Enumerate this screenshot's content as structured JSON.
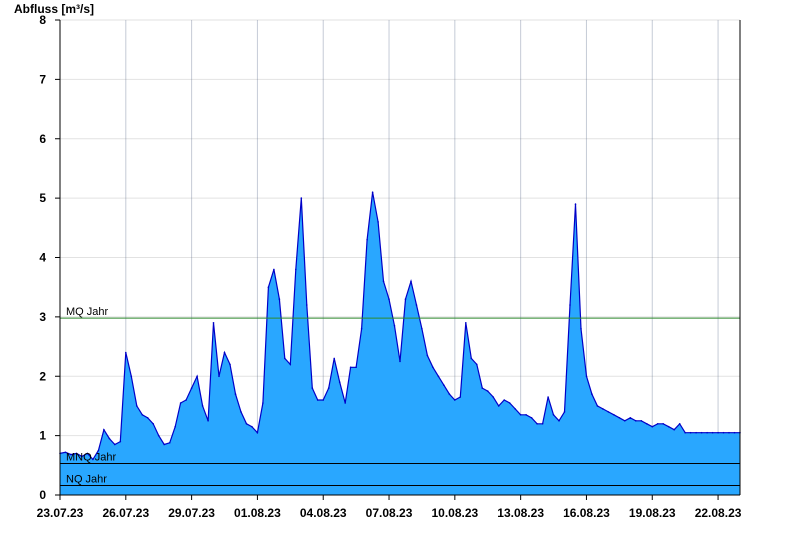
{
  "chart_data": {
    "type": "area",
    "title": "",
    "ylabel": "Abfluss [m³/s]",
    "xlabel": "",
    "ylim": [
      0,
      8
    ],
    "yticks": [
      0,
      1,
      2,
      3,
      4,
      5,
      6,
      7,
      8
    ],
    "xlim": [
      "2023-07-23T00:00",
      "2023-08-23T00:00"
    ],
    "xtick_labels": [
      "23.07.23",
      "26.07.23",
      "29.07.23",
      "01.08.23",
      "04.08.23",
      "07.08.23",
      "10.08.23",
      "13.08.23",
      "16.08.23",
      "19.08.23",
      "22.08.23"
    ],
    "xtick_dates": [
      "2023-07-23",
      "2023-07-26",
      "2023-07-29",
      "2023-08-01",
      "2023-08-04",
      "2023-08-07",
      "2023-08-10",
      "2023-08-13",
      "2023-08-16",
      "2023-08-19",
      "2023-08-22"
    ],
    "grid": true,
    "colors": {
      "fill": "#29a7ff",
      "line": "#0000c8",
      "mq_line": "#2e8b2e",
      "ref_line": "#000000",
      "grid": "#e2e2e2"
    },
    "reference_lines": [
      {
        "label": "MQ Jahr",
        "value": 2.98
      },
      {
        "label": "MNQ Jahr",
        "value": 0.53
      },
      {
        "label": "NQ Jahr",
        "value": 0.16
      }
    ],
    "series": [
      {
        "x": [
          "2023-07-23T00:00",
          "2023-07-23T06:00",
          "2023-07-23T12:00",
          "2023-07-23T18:00",
          "2023-07-24T00:00",
          "2023-07-24T06:00",
          "2023-07-24T12:00",
          "2023-07-24T18:00",
          "2023-07-25T00:00",
          "2023-07-25T06:00",
          "2023-07-25T12:00",
          "2023-07-25T18:00",
          "2023-07-26T00:00",
          "2023-07-26T06:00",
          "2023-07-26T12:00",
          "2023-07-26T18:00",
          "2023-07-27T00:00",
          "2023-07-27T06:00",
          "2023-07-27T12:00",
          "2023-07-27T18:00",
          "2023-07-28T00:00",
          "2023-07-28T06:00",
          "2023-07-28T12:00",
          "2023-07-28T18:00",
          "2023-07-29T00:00",
          "2023-07-29T06:00",
          "2023-07-29T12:00",
          "2023-07-29T18:00",
          "2023-07-30T00:00",
          "2023-07-30T06:00",
          "2023-07-30T12:00",
          "2023-07-30T18:00",
          "2023-07-31T00:00",
          "2023-07-31T06:00",
          "2023-07-31T12:00",
          "2023-07-31T18:00",
          "2023-08-01T00:00",
          "2023-08-01T06:00",
          "2023-08-01T12:00",
          "2023-08-01T18:00",
          "2023-08-02T00:00",
          "2023-08-02T06:00",
          "2023-08-02T12:00",
          "2023-08-02T18:00",
          "2023-08-03T00:00",
          "2023-08-03T06:00",
          "2023-08-03T12:00",
          "2023-08-03T18:00",
          "2023-08-04T00:00",
          "2023-08-04T06:00",
          "2023-08-04T12:00",
          "2023-08-04T18:00",
          "2023-08-05T00:00",
          "2023-08-05T06:00",
          "2023-08-05T12:00",
          "2023-08-05T18:00",
          "2023-08-06T00:00",
          "2023-08-06T06:00",
          "2023-08-06T12:00",
          "2023-08-06T18:00",
          "2023-08-07T00:00",
          "2023-08-07T06:00",
          "2023-08-07T12:00",
          "2023-08-07T18:00",
          "2023-08-08T00:00",
          "2023-08-08T06:00",
          "2023-08-08T12:00",
          "2023-08-08T18:00",
          "2023-08-09T00:00",
          "2023-08-09T06:00",
          "2023-08-09T12:00",
          "2023-08-09T18:00",
          "2023-08-10T00:00",
          "2023-08-10T06:00",
          "2023-08-10T12:00",
          "2023-08-10T18:00",
          "2023-08-11T00:00",
          "2023-08-11T06:00",
          "2023-08-11T12:00",
          "2023-08-11T18:00",
          "2023-08-12T00:00",
          "2023-08-12T06:00",
          "2023-08-12T12:00",
          "2023-08-12T18:00",
          "2023-08-13T00:00",
          "2023-08-13T06:00",
          "2023-08-13T12:00",
          "2023-08-13T18:00",
          "2023-08-14T00:00",
          "2023-08-14T06:00",
          "2023-08-14T12:00",
          "2023-08-14T18:00",
          "2023-08-15T00:00",
          "2023-08-15T06:00",
          "2023-08-15T12:00",
          "2023-08-15T18:00",
          "2023-08-16T00:00",
          "2023-08-16T06:00",
          "2023-08-16T12:00",
          "2023-08-16T18:00",
          "2023-08-17T00:00",
          "2023-08-17T06:00",
          "2023-08-17T12:00",
          "2023-08-17T18:00",
          "2023-08-18T00:00",
          "2023-08-18T06:00",
          "2023-08-18T12:00",
          "2023-08-18T18:00",
          "2023-08-19T00:00",
          "2023-08-19T06:00",
          "2023-08-19T12:00",
          "2023-08-19T18:00",
          "2023-08-20T00:00",
          "2023-08-20T06:00",
          "2023-08-20T12:00",
          "2023-08-20T18:00",
          "2023-08-21T00:00",
          "2023-08-21T06:00",
          "2023-08-21T12:00",
          "2023-08-21T18:00",
          "2023-08-22T00:00",
          "2023-08-22T06:00",
          "2023-08-22T12:00",
          "2023-08-22T18:00",
          "2023-08-23T00:00"
        ],
        "values": [
          0.7,
          0.72,
          0.68,
          0.7,
          0.65,
          0.7,
          0.6,
          0.75,
          1.1,
          0.95,
          0.85,
          0.9,
          2.4,
          2.0,
          1.5,
          1.35,
          1.3,
          1.2,
          1.0,
          0.85,
          0.88,
          1.15,
          1.55,
          1.6,
          1.8,
          2.0,
          1.5,
          1.25,
          2.9,
          2.0,
          2.4,
          2.2,
          1.7,
          1.4,
          1.2,
          1.15,
          1.05,
          1.55,
          3.5,
          3.8,
          3.3,
          2.3,
          2.2,
          3.8,
          5.0,
          3.2,
          1.8,
          1.6,
          1.6,
          1.8,
          2.3,
          1.9,
          1.55,
          2.15,
          2.15,
          2.8,
          4.3,
          5.1,
          4.6,
          3.6,
          3.3,
          2.85,
          2.25,
          3.3,
          3.6,
          3.2,
          2.8,
          2.35,
          2.15,
          2.0,
          1.85,
          1.7,
          1.6,
          1.65,
          2.9,
          2.3,
          2.2,
          1.8,
          1.75,
          1.65,
          1.5,
          1.6,
          1.55,
          1.45,
          1.35,
          1.35,
          1.3,
          1.2,
          1.2,
          1.65,
          1.35,
          1.25,
          1.4,
          3.2,
          4.9,
          2.8,
          2.0,
          1.7,
          1.5,
          1.45,
          1.4,
          1.35,
          1.3,
          1.25,
          1.3,
          1.25,
          1.25,
          1.2,
          1.15,
          1.2,
          1.2,
          1.15,
          1.1,
          1.2,
          1.05,
          1.05,
          1.05,
          1.05,
          1.05,
          1.05,
          1.05,
          1.05,
          1.05,
          1.05,
          1.05
        ]
      }
    ]
  }
}
